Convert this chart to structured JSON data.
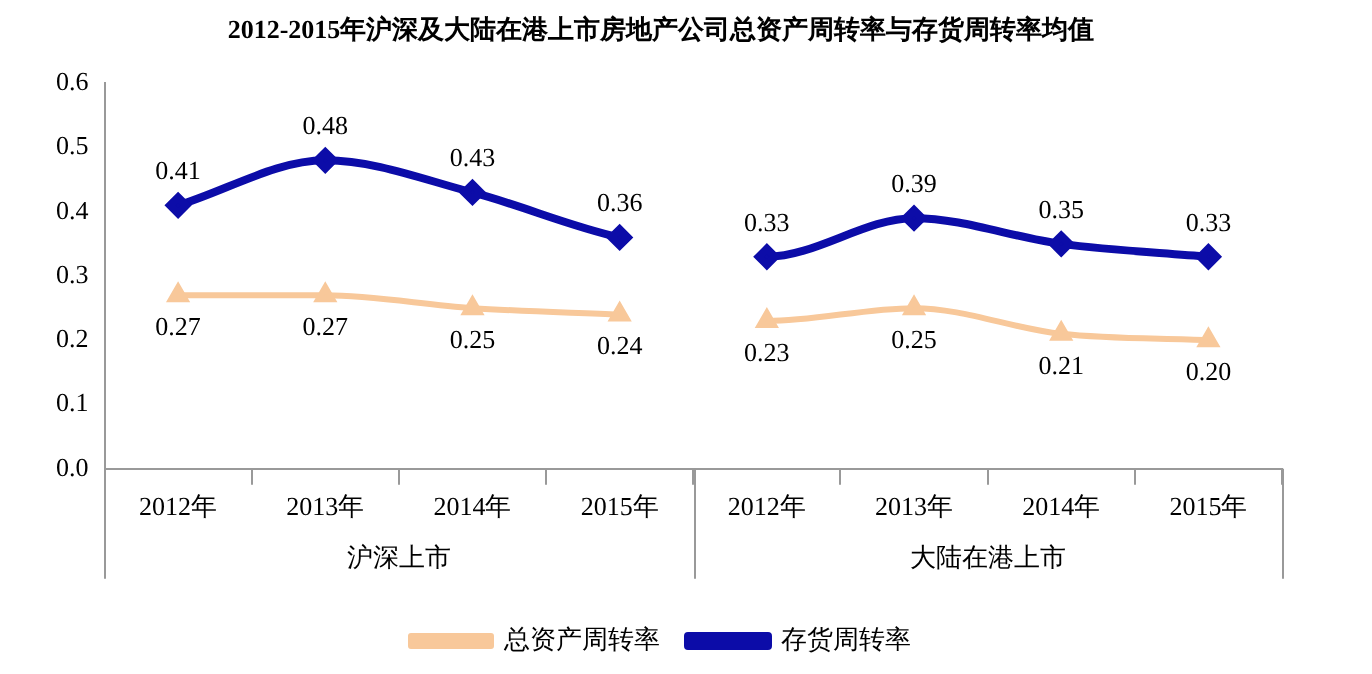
{
  "chart_data": {
    "type": "line",
    "title": "2012-2015年沪深及大陆在港上市房地产公司总资产周转率与存货周转率均值",
    "categories": [
      "2012年",
      "2013年",
      "2014年",
      "2015年",
      "2012年",
      "2013年",
      "2014年",
      "2015年"
    ],
    "annotations": [
      "沪深上市",
      "大陆在港上市"
    ],
    "series": [
      {
        "name": "总资产周转率",
        "color": "#f8c89a",
        "marker": "triangle",
        "values": [
          0.27,
          0.27,
          0.25,
          0.24,
          0.23,
          0.25,
          0.21,
          0.2
        ],
        "value_labels": [
          "0.27",
          "0.27",
          "0.25",
          "0.24",
          "0.23",
          "0.25",
          "0.21",
          "0.20"
        ]
      },
      {
        "name": "存货周转率",
        "color": "#0c0ca8",
        "marker": "diamond",
        "values": [
          0.41,
          0.48,
          0.43,
          0.36,
          0.33,
          0.39,
          0.35,
          0.33
        ],
        "value_labels": [
          "0.41",
          "0.48",
          "0.43",
          "0.36",
          "0.33",
          "0.39",
          "0.35",
          "0.33"
        ]
      }
    ],
    "ylim": [
      0,
      0.6
    ],
    "yticks": [
      {
        "value": 0,
        "label": "0.0"
      },
      {
        "value": 0.1,
        "label": "0.1"
      },
      {
        "value": 0.2,
        "label": "0.2"
      },
      {
        "value": 0.3,
        "label": "0.3"
      },
      {
        "value": 0.4,
        "label": "0.4"
      },
      {
        "value": 0.5,
        "label": "0.5"
      },
      {
        "value": 0.6,
        "label": "0.6"
      }
    ],
    "grid": false,
    "legend": "bottom"
  }
}
